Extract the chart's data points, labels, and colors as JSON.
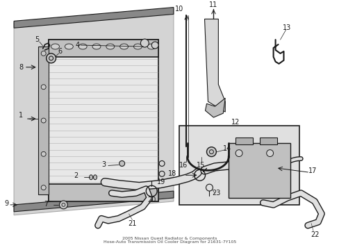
{
  "bg_color": "#ffffff",
  "lc": "#1a1a1a",
  "gray1": "#d0d0d0",
  "gray2": "#b8b8b8",
  "gray3": "#e8e8e8",
  "inset_bg": "#d8d8d8",
  "title": "2005 Nissan Quest Radiator & Components\nHose-Auto Transmission Oil Cooler Diagram for 21631-7Y105"
}
